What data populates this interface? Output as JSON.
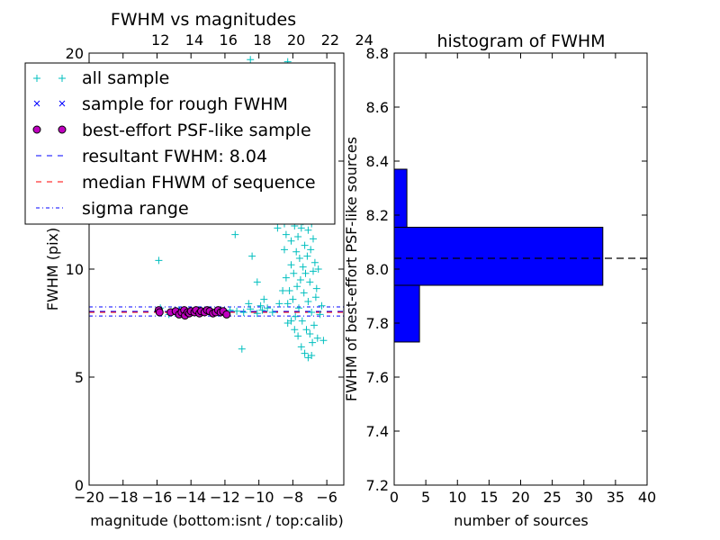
{
  "chart_data": [
    {
      "type": "scatter",
      "title": "FWHM vs magnitudes",
      "xlabel": "magnitude (bottom:isnt / top:calib)",
      "ylabel": "FWHM (pix)",
      "xlim": [
        -20,
        -5
      ],
      "ylim": [
        0,
        20
      ],
      "x_ticks": [
        -20,
        -18,
        -16,
        -14,
        -12,
        -10,
        -8,
        -6
      ],
      "x_tick_labels": [
        "−20",
        "−18",
        "−16",
        "−14",
        "−12",
        "−10",
        "−8",
        "−6"
      ],
      "y_ticks": [
        0,
        5,
        10,
        15,
        20
      ],
      "y_tick_labels": [
        "0",
        "5",
        "10",
        "",
        "20"
      ],
      "top_axis_ticks": [
        12,
        14,
        16,
        18,
        20,
        22,
        24
      ],
      "top_axis_offset": 27.8,
      "grid": false,
      "legend_position": "upper-left",
      "legend": [
        "all sample",
        "sample for rough FWHM",
        "best-effort PSF-like sample",
        "resultant FWHM: 8.04",
        "median FHWM of sequence",
        "sigma range"
      ],
      "colors": {
        "all_sample": "#00bfbf",
        "rough_sample": "#0000ff",
        "psf_sample_face": "#bf00bf",
        "resultant_fwhm": "#0000ff",
        "median_fwhm": "#ff0000",
        "sigma_range": "#0000ff"
      },
      "series": [
        {
          "name": "all sample",
          "marker": "+",
          "points": [
            [
              -15.9,
              10.4
            ],
            [
              -15.8,
              8.2
            ],
            [
              -15.3,
              7.9
            ],
            [
              -14.7,
              8.1
            ],
            [
              -14.1,
              7.95
            ],
            [
              -13.6,
              8.1
            ],
            [
              -13.0,
              8.05
            ],
            [
              -12.6,
              8.0
            ],
            [
              -11.7,
              8.1
            ],
            [
              -11.3,
              8.05
            ],
            [
              -10.9,
              8.0
            ],
            [
              -10.5,
              8.15
            ],
            [
              -10.1,
              7.95
            ],
            [
              -9.8,
              8.1
            ],
            [
              -9.5,
              8.2
            ],
            [
              -9.2,
              8.0
            ],
            [
              -11.4,
              11.6
            ],
            [
              -11.0,
              6.3
            ],
            [
              -10.4,
              10.6
            ],
            [
              -10.1,
              9.4
            ],
            [
              -9.7,
              8.6
            ],
            [
              -9.5,
              19.3
            ],
            [
              -9.3,
              12.9
            ],
            [
              -9.0,
              19.1
            ],
            [
              -10.6,
              8.4
            ],
            [
              -9.9,
              8.3
            ],
            [
              -8.8,
              8.4
            ],
            [
              -8.6,
              9.0
            ],
            [
              -8.9,
              11.9
            ],
            [
              -8.7,
              13.1
            ],
            [
              -8.5,
              10.9
            ],
            [
              -8.5,
              12.1
            ],
            [
              -8.4,
              9.6
            ],
            [
              -8.4,
              11.6
            ],
            [
              -8.3,
              13.4
            ],
            [
              -8.3,
              8.4
            ],
            [
              -8.2,
              9.0
            ],
            [
              -8.2,
              12.5
            ],
            [
              -8.1,
              10.2
            ],
            [
              -8.1,
              11.3
            ],
            [
              -8.0,
              13.8
            ],
            [
              -8.0,
              8.6
            ],
            [
              -7.95,
              9.8
            ],
            [
              -7.9,
              12.0
            ],
            [
              -7.85,
              7.8
            ],
            [
              -7.8,
              10.8
            ],
            [
              -7.8,
              14.0
            ],
            [
              -7.75,
              9.2
            ],
            [
              -7.7,
              11.5
            ],
            [
              -7.7,
              12.8
            ],
            [
              -7.65,
              8.2
            ],
            [
              -7.6,
              10.5
            ],
            [
              -7.6,
              13.2
            ],
            [
              -7.55,
              9.5
            ],
            [
              -7.5,
              11.9
            ],
            [
              -7.5,
              14.5
            ],
            [
              -7.45,
              7.6
            ],
            [
              -7.4,
              10.1
            ],
            [
              -7.4,
              12.2
            ],
            [
              -7.35,
              8.9
            ],
            [
              -7.3,
              11.1
            ],
            [
              -7.3,
              13.6
            ],
            [
              -7.25,
              9.8
            ],
            [
              -7.2,
              7.2
            ],
            [
              -7.2,
              12.6
            ],
            [
              -7.15,
              10.6
            ],
            [
              -7.1,
              8.5
            ],
            [
              -7.1,
              11.8
            ],
            [
              -7.05,
              13.0
            ],
            [
              -7.0,
              9.4
            ],
            [
              -7.0,
              7.0
            ],
            [
              -6.95,
              10.9
            ],
            [
              -6.9,
              8.0
            ],
            [
              -6.9,
              12.1
            ],
            [
              -6.85,
              6.6
            ],
            [
              -6.8,
              9.9
            ],
            [
              -6.8,
              11.4
            ],
            [
              -6.75,
              7.4
            ],
            [
              -6.7,
              10.3
            ],
            [
              -6.65,
              8.7
            ],
            [
              -6.6,
              9.1
            ],
            [
              -6.55,
              6.8
            ],
            [
              -6.5,
              10.0
            ],
            [
              -6.4,
              7.9
            ],
            [
              -6.3,
              8.3
            ],
            [
              -6.2,
              6.7
            ],
            [
              -7.3,
              6.1
            ],
            [
              -7.1,
              5.9
            ],
            [
              -6.9,
              6.0
            ],
            [
              -7.5,
              6.4
            ],
            [
              -7.7,
              6.9
            ],
            [
              -7.9,
              7.2
            ],
            [
              -8.1,
              7.6
            ],
            [
              -8.3,
              7.5
            ],
            [
              -8.0,
              15.2
            ],
            [
              -7.8,
              15.6
            ],
            [
              -7.6,
              15.1
            ],
            [
              -7.4,
              15.8
            ],
            [
              -7.2,
              14.8
            ],
            [
              -7.0,
              14.2
            ],
            [
              -6.8,
              13.8
            ],
            [
              -7.9,
              16.4
            ],
            [
              -8.6,
              14.9
            ],
            [
              -8.9,
              15.5
            ],
            [
              -9.4,
              15.9
            ],
            [
              -10.2,
              16.8
            ],
            [
              -9.9,
              17.6
            ],
            [
              -9.1,
              17.2
            ],
            [
              -8.4,
              16.1
            ],
            [
              -7.6,
              16.9
            ],
            [
              -7.3,
              17.7
            ],
            [
              -7.0,
              17.1
            ],
            [
              -6.7,
              16.5
            ],
            [
              -8.2,
              17.9
            ],
            [
              -8.8,
              18.6
            ],
            [
              -7.4,
              18.8
            ],
            [
              -8.3,
              19.6
            ],
            [
              -6.6,
              19.3
            ],
            [
              -10.5,
              19.7
            ],
            [
              -11.0,
              18.2
            ],
            [
              -10.8,
              15.3
            ],
            [
              -8.6,
              16.2
            ],
            [
              -7.0,
              15.5
            ],
            [
              -6.4,
              14.6
            ]
          ]
        },
        {
          "name": "sample for rough FWHM",
          "marker": "x",
          "points": [
            [
              -14.8,
              8.1
            ],
            [
              -13.9,
              8.0
            ],
            [
              -12.9,
              8.05
            ],
            [
              -12.2,
              8.1
            ]
          ]
        },
        {
          "name": "best-effort PSF-like sample",
          "marker": "o",
          "points": [
            [
              -15.9,
              8.1
            ],
            [
              -15.85,
              8.0
            ],
            [
              -15.2,
              8.0
            ],
            [
              -14.9,
              8.05
            ],
            [
              -14.7,
              7.9
            ],
            [
              -14.55,
              8.0
            ],
            [
              -14.4,
              8.1
            ],
            [
              -14.35,
              7.85
            ],
            [
              -14.2,
              8.0
            ],
            [
              -14.1,
              7.95
            ],
            [
              -14.0,
              8.05
            ],
            [
              -13.8,
              8.0
            ],
            [
              -13.7,
              8.1
            ],
            [
              -13.5,
              7.95
            ],
            [
              -13.4,
              8.05
            ],
            [
              -13.2,
              8.0
            ],
            [
              -13.05,
              8.1
            ],
            [
              -12.9,
              8.05
            ],
            [
              -12.7,
              7.95
            ],
            [
              -12.55,
              8.0
            ],
            [
              -12.4,
              8.1
            ],
            [
              -12.25,
              8.0
            ],
            [
              -12.1,
              8.05
            ],
            [
              -11.9,
              7.9
            ]
          ]
        }
      ],
      "hlines": [
        {
          "name": "resultant FWHM: 8.04",
          "y": 8.04,
          "style": "dashed"
        },
        {
          "name": "median FHWM of sequence",
          "y": 8.04,
          "style": "dashed"
        },
        {
          "name": "sigma range",
          "y": 8.25,
          "style": "dashdot"
        },
        {
          "name": "sigma range",
          "y": 7.83,
          "style": "dashdot"
        }
      ]
    },
    {
      "type": "bar",
      "orientation": "horizontal",
      "title": "histogram of FWHM",
      "xlabel": "number of sources",
      "ylabel": "FWHM of best-effort PSF-like sources",
      "xlim": [
        0,
        40
      ],
      "ylim": [
        7.2,
        8.8
      ],
      "x_ticks": [
        0,
        5,
        10,
        15,
        20,
        25,
        30,
        35,
        40
      ],
      "y_ticks": [
        7.2,
        7.4,
        7.6,
        7.8,
        8.0,
        8.2,
        8.4,
        8.6,
        8.8
      ],
      "y_tick_labels": [
        "7.2",
        "7.4",
        "7.6",
        "7.8",
        "8.0",
        "8.2",
        "8.4",
        "8.6",
        "8.8"
      ],
      "bar_color": "#0000ff",
      "bins": [
        {
          "y0": 7.73,
          "y1": 7.94,
          "count": 4
        },
        {
          "y0": 7.94,
          "y1": 8.155,
          "count": 33
        },
        {
          "y0": 8.155,
          "y1": 8.37,
          "count": 2
        }
      ],
      "hline": {
        "y": 8.04,
        "style": "dashed"
      }
    }
  ]
}
